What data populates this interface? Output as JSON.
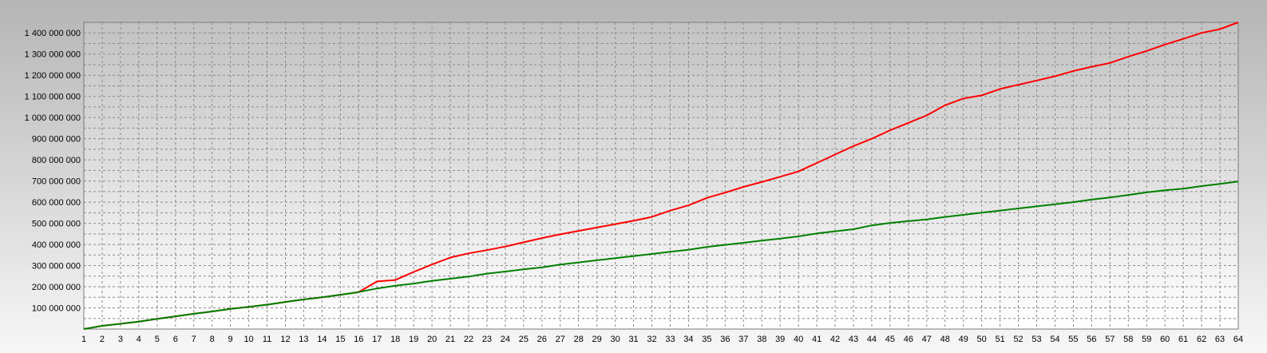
{
  "chart_data": {
    "type": "line",
    "title": "",
    "xlabel": "",
    "ylabel": "",
    "x": [
      1,
      2,
      3,
      4,
      5,
      6,
      7,
      8,
      9,
      10,
      11,
      12,
      13,
      14,
      15,
      16,
      17,
      18,
      19,
      20,
      21,
      22,
      23,
      24,
      25,
      26,
      27,
      28,
      29,
      30,
      31,
      32,
      33,
      34,
      35,
      36,
      37,
      38,
      39,
      40,
      41,
      42,
      43,
      44,
      45,
      46,
      47,
      48,
      49,
      50,
      51,
      52,
      53,
      54,
      55,
      56,
      57,
      58,
      59,
      60,
      61,
      62,
      63,
      64
    ],
    "xlim": [
      1,
      64
    ],
    "ylim": [
      0,
      1450000000
    ],
    "grid": true,
    "yticks": [
      100000000,
      200000000,
      300000000,
      400000000,
      500000000,
      600000000,
      700000000,
      800000000,
      900000000,
      1000000000,
      1100000000,
      1200000000,
      1300000000,
      1400000000
    ],
    "ytick_labels": [
      "100 000 000",
      "200 000 000",
      "300 000 000",
      "400 000 000",
      "500 000 000",
      "600 000 000",
      "700 000 000",
      "800 000 000",
      "900 000 000",
      "1 000 000 000",
      "1 100 000 000",
      "1 200 000 000",
      "1 300 000 000",
      "1 400 000 000"
    ],
    "xtick_labels": [
      "1",
      "2",
      "3",
      "4",
      "5",
      "6",
      "7",
      "8",
      "9",
      "10",
      "11",
      "12",
      "13",
      "14",
      "15",
      "16",
      "17",
      "18",
      "19",
      "20",
      "21",
      "22",
      "23",
      "24",
      "25",
      "26",
      "27",
      "28",
      "29",
      "30",
      "31",
      "32",
      "33",
      "34",
      "35",
      "36",
      "37",
      "38",
      "39",
      "40",
      "41",
      "42",
      "43",
      "44",
      "45",
      "46",
      "47",
      "48",
      "49",
      "50",
      "51",
      "52",
      "53",
      "54",
      "55",
      "56",
      "57",
      "58",
      "59",
      "60",
      "61",
      "62",
      "63",
      "64"
    ],
    "series": [
      {
        "color": "#ff0000",
        "values": [
          0,
          15000000,
          25000000,
          35000000,
          48000000,
          60000000,
          72000000,
          83000000,
          95000000,
          105000000,
          115000000,
          128000000,
          140000000,
          150000000,
          162000000,
          175000000,
          225000000,
          232000000,
          270000000,
          305000000,
          338000000,
          358000000,
          373000000,
          390000000,
          410000000,
          430000000,
          448000000,
          464000000,
          480000000,
          496000000,
          512000000,
          530000000,
          560000000,
          585000000,
          620000000,
          645000000,
          672000000,
          695000000,
          720000000,
          745000000,
          785000000,
          825000000,
          865000000,
          900000000,
          940000000,
          975000000,
          1010000000,
          1058000000,
          1090000000,
          1105000000,
          1135000000,
          1155000000,
          1175000000,
          1195000000,
          1220000000,
          1240000000,
          1258000000,
          1288000000,
          1315000000,
          1345000000,
          1372000000,
          1400000000,
          1418000000,
          1450000000
        ]
      },
      {
        "color": "#008000",
        "values": [
          0,
          15000000,
          25000000,
          35000000,
          48000000,
          60000000,
          72000000,
          83000000,
          95000000,
          105000000,
          115000000,
          128000000,
          140000000,
          150000000,
          162000000,
          175000000,
          192000000,
          205000000,
          215000000,
          228000000,
          238000000,
          248000000,
          262000000,
          272000000,
          282000000,
          292000000,
          305000000,
          315000000,
          325000000,
          335000000,
          345000000,
          355000000,
          365000000,
          375000000,
          388000000,
          398000000,
          408000000,
          418000000,
          428000000,
          438000000,
          452000000,
          462000000,
          472000000,
          490000000,
          502000000,
          510000000,
          518000000,
          530000000,
          540000000,
          550000000,
          560000000,
          570000000,
          580000000,
          590000000,
          600000000,
          612000000,
          622000000,
          634000000,
          646000000,
          656000000,
          664000000,
          676000000,
          686000000,
          698000000
        ]
      }
    ]
  }
}
